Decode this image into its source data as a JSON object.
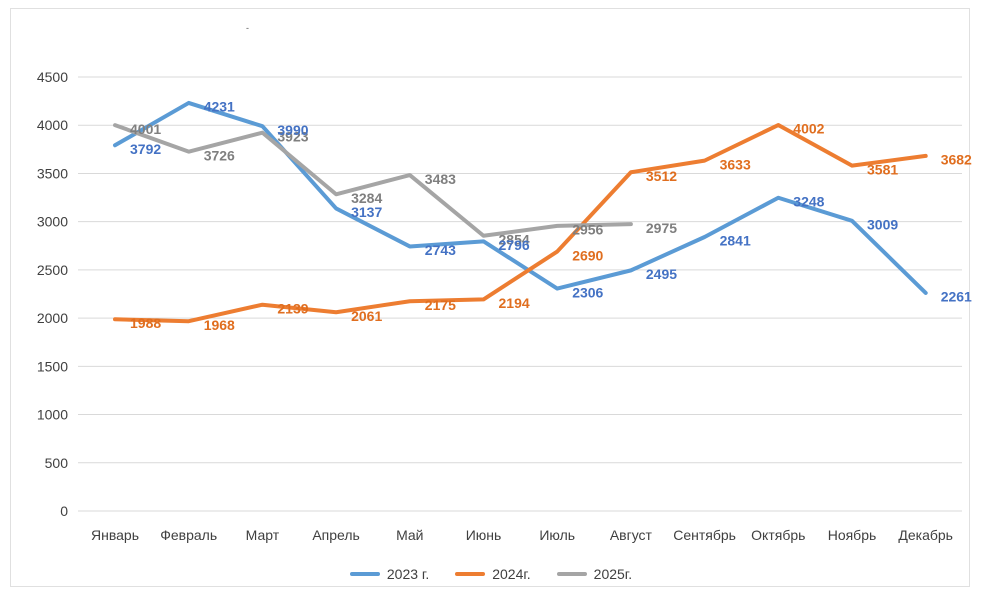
{
  "chart_data": {
    "type": "line",
    "title": "-",
    "categories": [
      "Январь",
      "Февраль",
      "Март",
      "Апрель",
      "Май",
      "Июнь",
      "Июль",
      "Август",
      "Сентябрь",
      "Октябрь",
      "Ноябрь",
      "Декабрь"
    ],
    "series": [
      {
        "name": "2023 г.",
        "color": "#5B9BD5",
        "label_color": "#4472C4",
        "values": [
          3792,
          4231,
          3990,
          3137,
          2743,
          2796,
          2306,
          2495,
          2841,
          3248,
          3009,
          2261
        ]
      },
      {
        "name": "2024г.",
        "color": "#ED7D31",
        "label_color": "#E06E1F",
        "values": [
          1988,
          1968,
          2139,
          2061,
          2175,
          2194,
          2690,
          3512,
          3633,
          4002,
          3581,
          3682
        ]
      },
      {
        "name": "2025г.",
        "color": "#A5A5A5",
        "label_color": "#7F7F7F",
        "values": [
          4001,
          3726,
          3923,
          3284,
          3483,
          2854,
          2956,
          2975
        ]
      }
    ],
    "ylim": [
      0,
      4500
    ],
    "y_ticks": [
      0,
      500,
      1000,
      1500,
      2000,
      2500,
      3000,
      3500,
      4000,
      4500
    ],
    "grid": true,
    "gridline_color": "#D9D9D9",
    "axis_text_color": "#404040",
    "legend_position": "bottom",
    "data_labels": true
  }
}
